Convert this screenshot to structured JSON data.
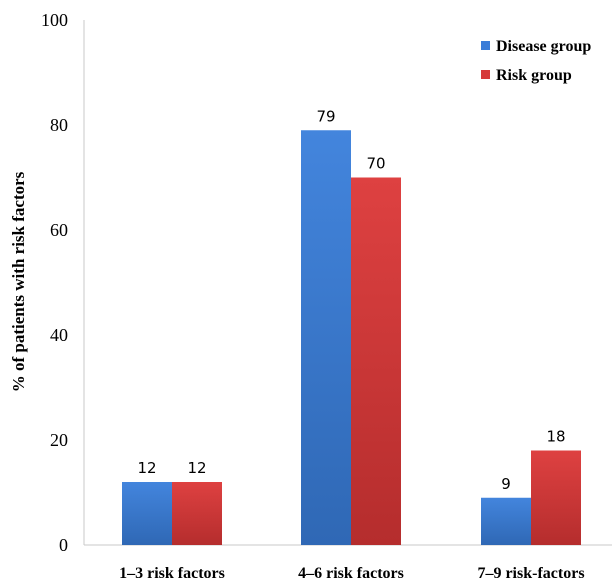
{
  "chart_data": {
    "type": "bar",
    "title": "",
    "xlabel": "",
    "ylabel": "% of patients with risk factors",
    "ylim": [
      0,
      100
    ],
    "yticks": [
      "0",
      "20",
      "40",
      "60",
      "80",
      "100"
    ],
    "categories": [
      "1–3 risk factors",
      "4–6 risk factors",
      "7–9 risk-factors"
    ],
    "series": [
      {
        "name": "Disease group",
        "values": [
          12,
          79,
          9
        ],
        "color": "#3B7DD8"
      },
      {
        "name": "Risk group",
        "values": [
          12,
          70,
          18
        ],
        "color": "#D63A3A"
      }
    ],
    "data_labels": [
      [
        "12",
        "79",
        "9"
      ],
      [
        "12",
        "70",
        "18"
      ]
    ],
    "legend_position": "top-right",
    "grid": false
  }
}
